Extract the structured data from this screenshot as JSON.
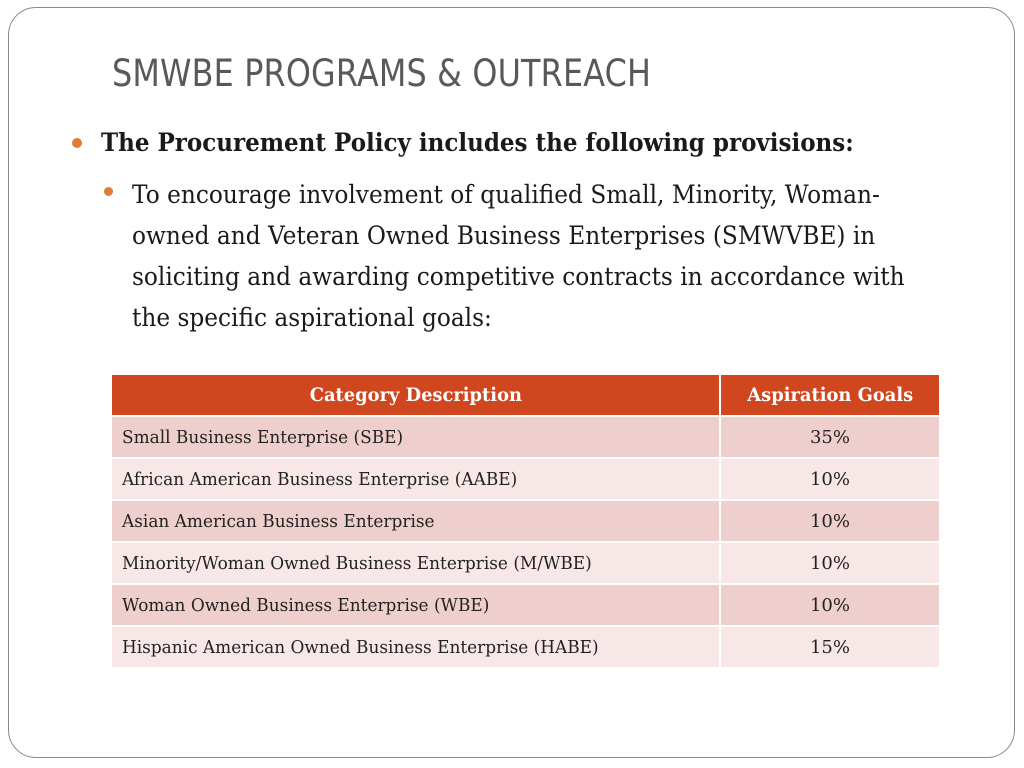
{
  "slide": {
    "title": "SMWBE PROGRAMS & OUTREACH",
    "bullet1": "The Procurement Policy includes the following provisions:",
    "bullet2_lines": [
      "To encourage involvement of qualified Small, Minority, Woman-",
      "owned and Veteran Owned Business Enterprises (SMWVBE) in",
      "soliciting and awarding competitive contracts in accordance with",
      "the specific aspirational goals:"
    ]
  },
  "table": {
    "headers": [
      "Category Description",
      "Aspiration Goals"
    ],
    "rows": [
      {
        "category": "Small Business Enterprise (SBE)",
        "goal": "35%"
      },
      {
        "category": "African American Business Enterprise (AABE)",
        "goal": "10%"
      },
      {
        "category": "Asian American Business Enterprise",
        "goal": "10%"
      },
      {
        "category": "Minority/Woman Owned Business Enterprise (M/WBE)",
        "goal": "10%"
      },
      {
        "category": "Woman Owned Business Enterprise (WBE)",
        "goal": "10%"
      },
      {
        "category": "Hispanic American Owned Business Enterprise (HABE)",
        "goal": "15%"
      }
    ]
  },
  "colors": {
    "header_bg": "#d0461e",
    "row_odd_bg": "#efcfcd",
    "row_even_bg": "#f7e8e7",
    "bullet": "#e07b39",
    "title": "#595959"
  }
}
